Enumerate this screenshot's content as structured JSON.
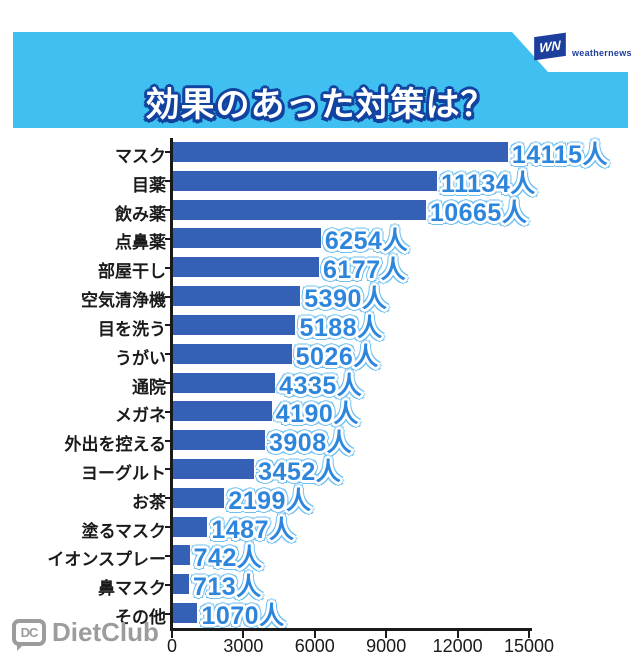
{
  "header": {
    "title": "効果のあった対策は？"
  },
  "brand": {
    "weathernews": {
      "abbr": "WN",
      "name": "weathernews"
    },
    "dietclub": {
      "abbr": "DC",
      "name": "DietClub"
    }
  },
  "chart_data": {
    "type": "bar",
    "orientation": "horizontal",
    "title": "効果のあった対策は？",
    "unit_suffix": "人",
    "categories": [
      "マスク",
      "目薬",
      "飲み薬",
      "点鼻薬",
      "部屋干し",
      "空気清浄機",
      "目を洗う",
      "うがい",
      "通院",
      "メガネ",
      "外出を控える",
      "ヨーグルト",
      "お茶",
      "塗るマスク",
      "イオンスプレー",
      "鼻マスク",
      "その他"
    ],
    "values": [
      14115,
      11134,
      10665,
      6254,
      6177,
      5390,
      5188,
      5026,
      4335,
      4190,
      3908,
      3452,
      2199,
      1487,
      742,
      713,
      1070
    ],
    "value_labels": [
      "14115人",
      "11134人",
      "10665人",
      "6254人",
      "6177人",
      "5390人",
      "5188人",
      "5026人",
      "4335人",
      "4190人",
      "3908人",
      "3452人",
      "2199人",
      "1487人",
      "742人",
      "713人",
      "1070人"
    ],
    "xlim": [
      0,
      15000
    ],
    "xticks": [
      0,
      3000,
      6000,
      9000,
      12000,
      15000
    ],
    "xtick_labels": [
      "0",
      "3000",
      "6000",
      "9000",
      "12000",
      "15000"
    ],
    "grid": false,
    "legend": null,
    "colors": {
      "banner_bg": "#3FC0F0",
      "title_text": "#FFFFFF",
      "title_outline": "#1243A0",
      "bar": "#3461B6",
      "value_label": "#2E86DC",
      "value_outline": "#FFFFFF",
      "axis": "#1A1A1A",
      "weathernews_navy": "#1C3E9C",
      "dietclub_gray": "#9C9C9C"
    }
  }
}
